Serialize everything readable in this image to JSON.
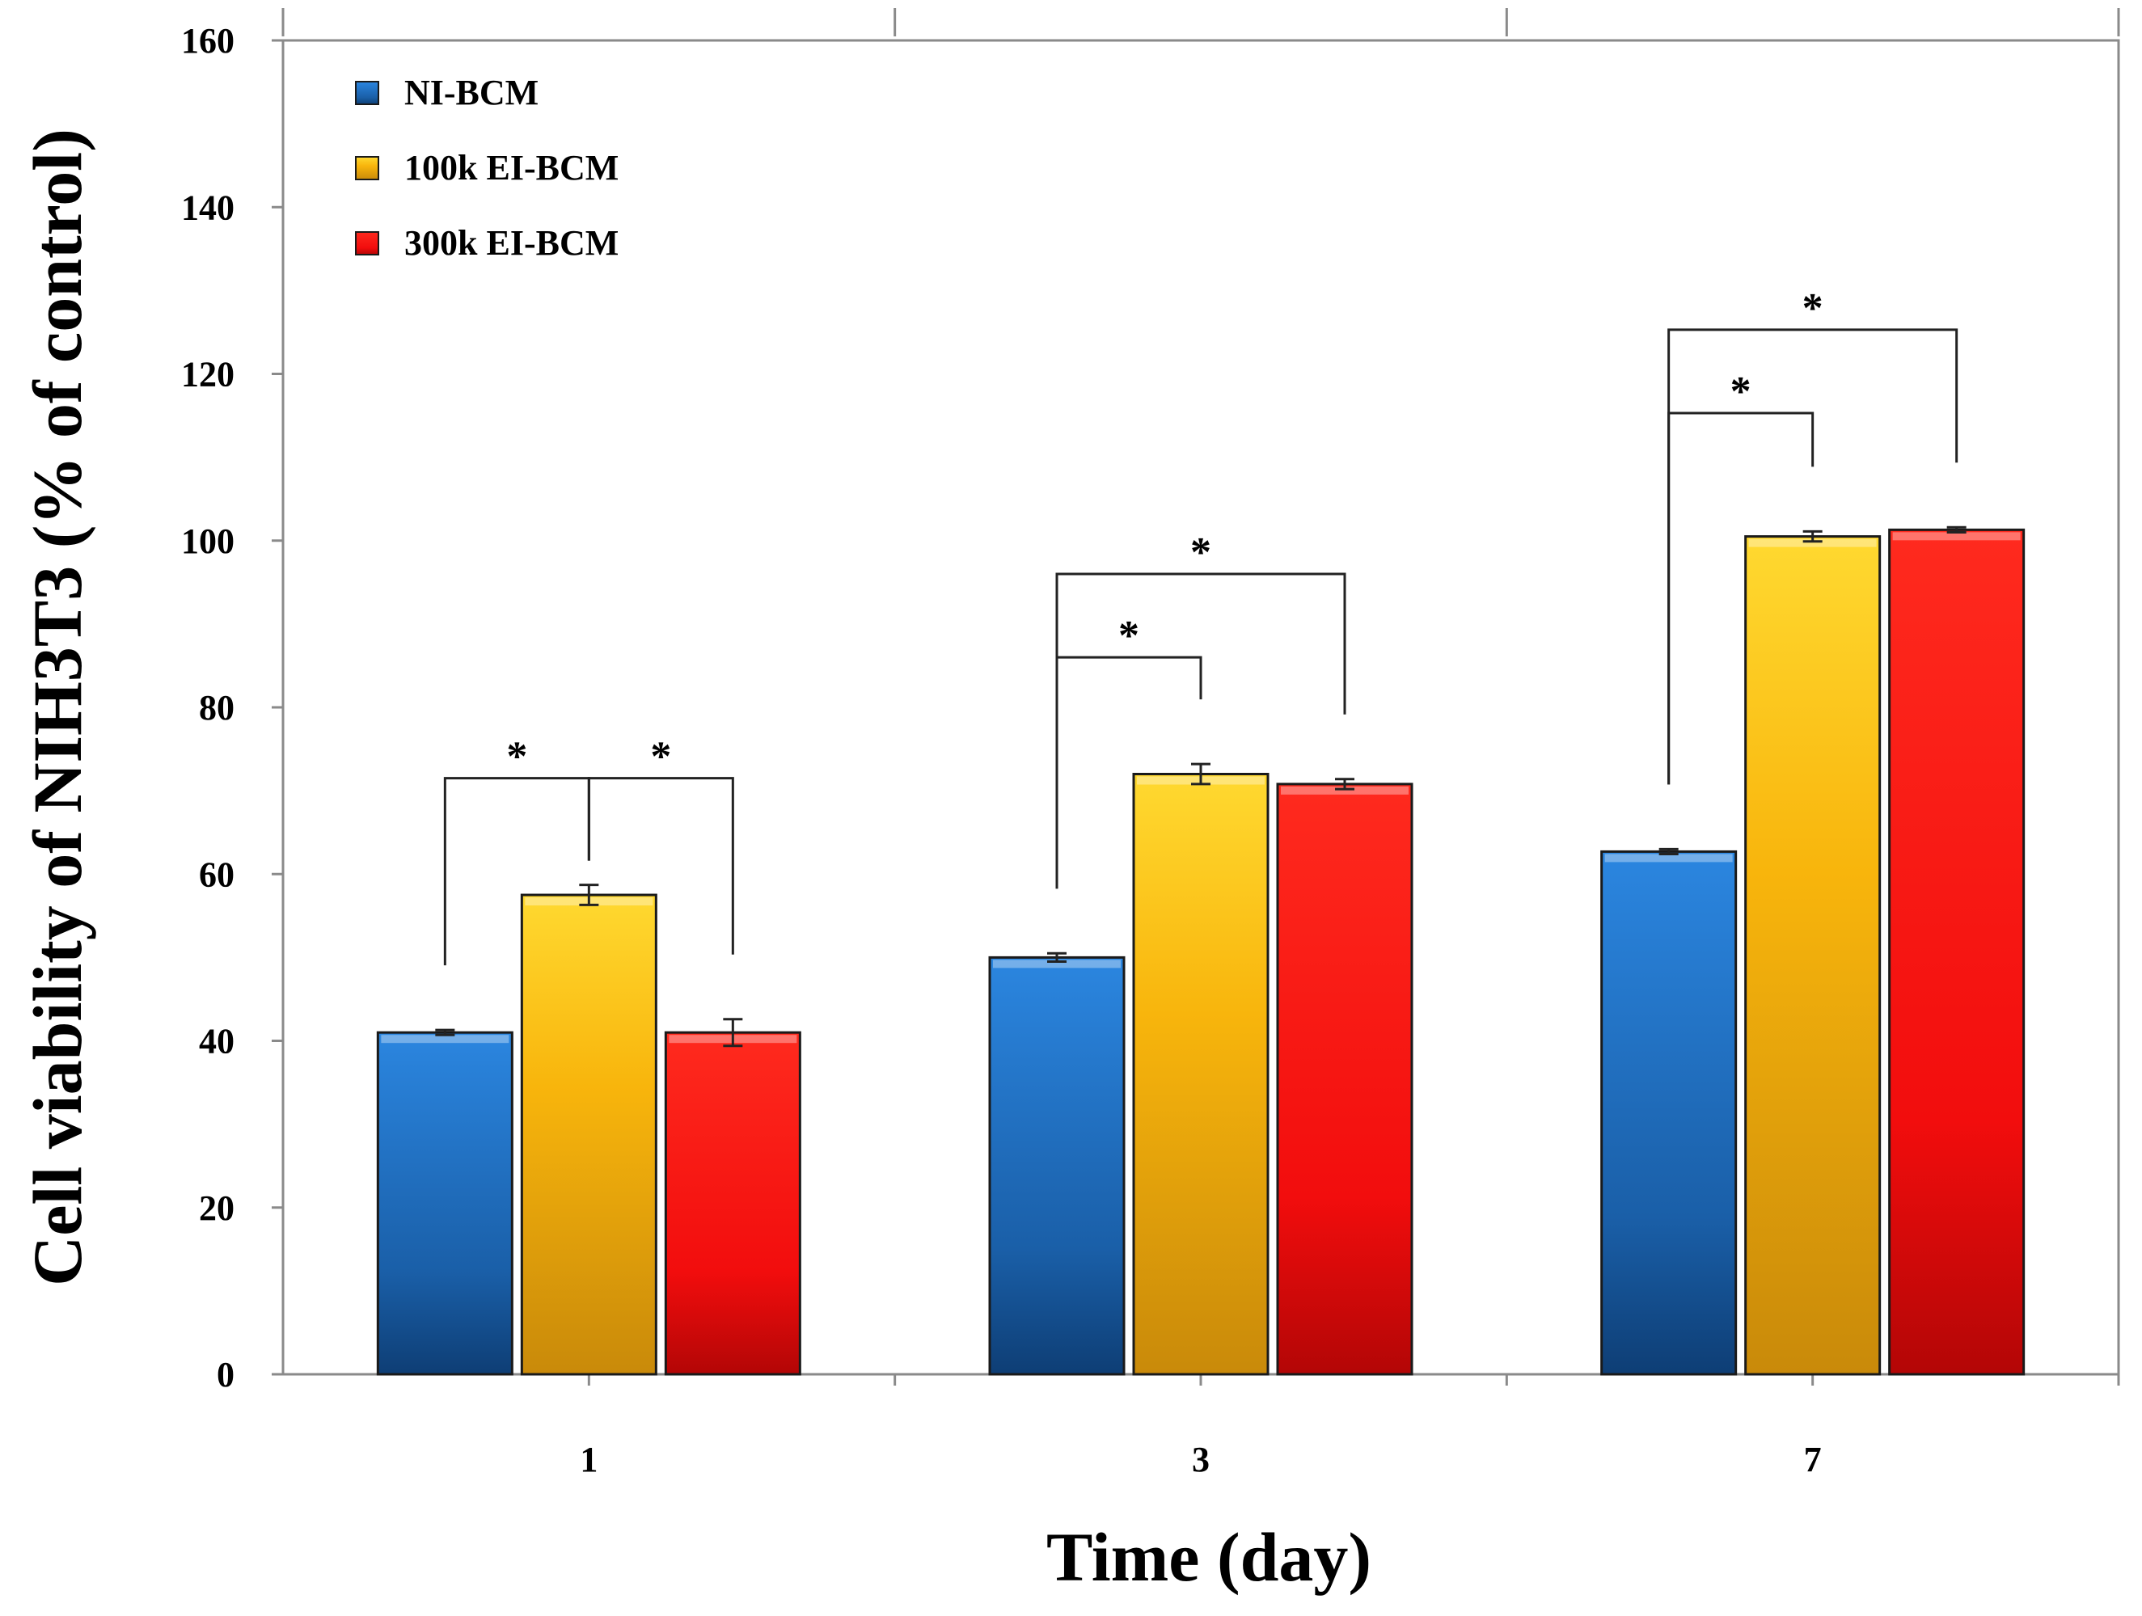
{
  "chart_data": {
    "type": "bar",
    "title": "",
    "xlabel": "Time (day)",
    "ylabel": "Cell viability of NIH3T3 (% of control)",
    "ylim": [
      0,
      160
    ],
    "yticks": [
      0,
      20,
      40,
      60,
      80,
      100,
      120,
      140,
      160
    ],
    "categories": [
      "1",
      "3",
      "7"
    ],
    "series": [
      {
        "name": "NI-BCM",
        "color": "#1f6fc0",
        "values": [
          41,
          50,
          62.7
        ],
        "errors": [
          0.3,
          0.5,
          0.3
        ]
      },
      {
        "name": "100k EI-BCM",
        "color": "#f3b40f",
        "values": [
          57.5,
          72,
          100.5
        ],
        "errors": [
          1.2,
          1.2,
          0.6
        ]
      },
      {
        "name": "300k EI-BCM",
        "color": "#f20d0d",
        "values": [
          41,
          70.8,
          101.3
        ],
        "errors": [
          1.6,
          0.6,
          0.3
        ]
      }
    ],
    "legend": "top-left",
    "significance": [
      {
        "category": 0,
        "from": 1,
        "to": 0,
        "label": "*"
      },
      {
        "category": 0,
        "from": 1,
        "to": 2,
        "label": "*"
      },
      {
        "category": 1,
        "from": 0,
        "to": 1,
        "label": "*"
      },
      {
        "category": 1,
        "from": 0,
        "to": 2,
        "label": "*"
      },
      {
        "category": 2,
        "from": 0,
        "to": 1,
        "label": "*"
      },
      {
        "category": 2,
        "from": 0,
        "to": 2,
        "label": "*"
      }
    ]
  }
}
